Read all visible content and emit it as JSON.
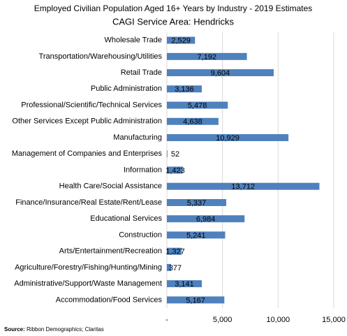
{
  "chart_data": {
    "type": "bar",
    "orientation": "horizontal",
    "title": "Employed Civilian Population Aged 16+ Years by Industry - 2019 Estimates",
    "subtitle": "CAGI Service Area: Hendricks",
    "categories": [
      "Wholesale Trade",
      "Transportation/Warehousing/Utilities",
      "Retail Trade",
      "Public Administration",
      "Professional/Scientific/Technical Services",
      "Other Services Except Public Administration",
      "Manufacturing",
      "Management of Companies and Enterprises",
      "Information",
      "Health Care/Social Assistance",
      "Finance/Insurance/Real Estate/Rent/Lease",
      "Educational Services",
      "Construction",
      "Arts/Entertainment/Recreation",
      "Agriculture/Forestry/Fishing/Hunting/Mining",
      "Administrative/Support/Waste Management",
      "Accommodation/Food Services"
    ],
    "values": [
      2529,
      7192,
      9604,
      3136,
      5478,
      4638,
      10929,
      52,
      1423,
      13712,
      5337,
      6984,
      5241,
      1327,
      377,
      3141,
      5167
    ],
    "value_labels": [
      "2,529",
      "7,192",
      "9,604",
      "3,136",
      "5,478",
      "4,638",
      "10,929",
      "52",
      "1,423",
      "13,712",
      "5,337",
      "6,984",
      "5,241",
      "1,327",
      "377",
      "3,141",
      "5,167"
    ],
    "color": "#4f81bd",
    "xlim": [
      0,
      15000
    ],
    "xticks": [
      {
        "value": 0,
        "label": "-"
      },
      {
        "value": 5000,
        "label": "5,000"
      },
      {
        "value": 10000,
        "label": "10,000"
      },
      {
        "value": 15000,
        "label": "15,000"
      }
    ],
    "grid": true,
    "source_label": "Source:",
    "source": "Ribbon Demographics; Claritas"
  }
}
